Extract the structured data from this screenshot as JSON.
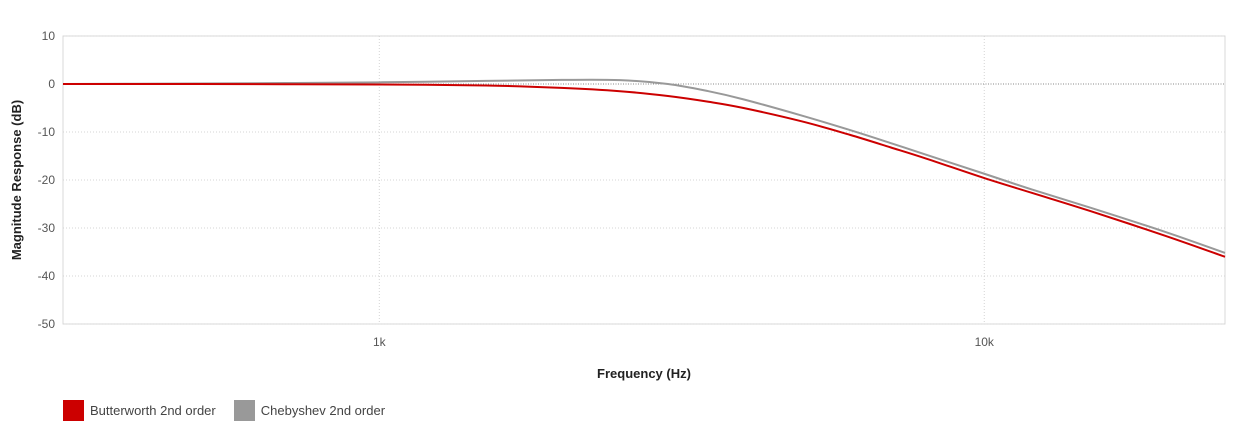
{
  "chart_data": {
    "type": "line",
    "title": "",
    "xlabel": "Frequency (Hz)",
    "ylabel": "Magnitude Response (dB)",
    "x_scale": "log",
    "xlim": [
      300,
      25000
    ],
    "ylim": [
      -50,
      10
    ],
    "x_ticks": [
      {
        "value": 1000,
        "label": "1k"
      },
      {
        "value": 10000,
        "label": "10k"
      }
    ],
    "y_ticks": [
      {
        "value": 10,
        "label": "10"
      },
      {
        "value": 0,
        "label": "0"
      },
      {
        "value": -10,
        "label": "-10"
      },
      {
        "value": -20,
        "label": "-20"
      },
      {
        "value": -30,
        "label": "-30"
      },
      {
        "value": -40,
        "label": "-40"
      },
      {
        "value": -50,
        "label": "-50"
      }
    ],
    "grid": true,
    "legend_position": "bottom-left",
    "x": [
      300,
      500,
      700,
      1000,
      1500,
      2000,
      2500,
      3000,
      3500,
      4000,
      5000,
      6000,
      7000,
      8000,
      10000,
      12000,
      15000,
      20000,
      25000
    ],
    "series": [
      {
        "name": "Butterworth 2nd order",
        "color": "#cc0000",
        "values": [
          0,
          0,
          -0.05,
          -0.1,
          -0.3,
          -0.8,
          -1.5,
          -2.5,
          -3.7,
          -5,
          -7.8,
          -10.6,
          -13.2,
          -15.5,
          -19.6,
          -22.7,
          -26.5,
          -31.7,
          -36
        ]
      },
      {
        "name": "Chebyshev 2nd order",
        "color": "#999999",
        "values": [
          0,
          0.1,
          0.2,
          0.35,
          0.65,
          0.85,
          0.8,
          0,
          -1.5,
          -3.2,
          -6.6,
          -9.6,
          -12.3,
          -14.7,
          -18.7,
          -22,
          -25.8,
          -30.9,
          -35.2
        ]
      }
    ]
  }
}
